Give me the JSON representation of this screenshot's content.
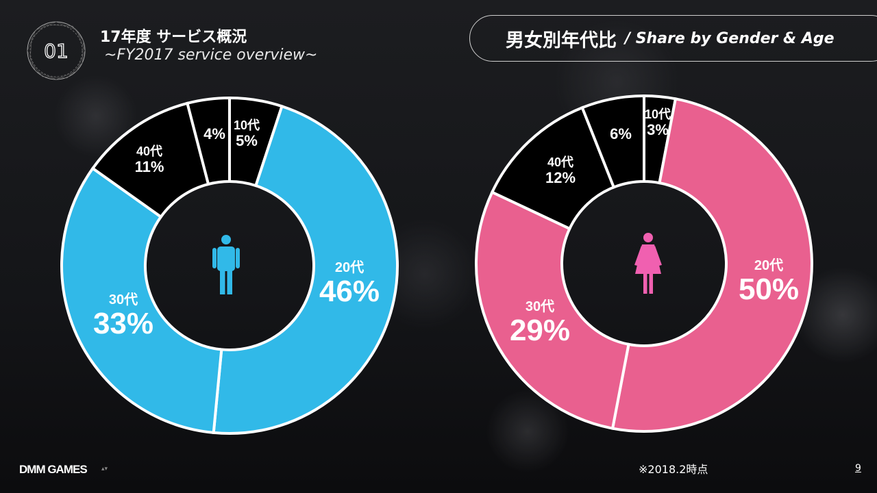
{
  "header": {
    "badge": "01",
    "title": "17年度 サービス概況",
    "subtitle": "~FY2017 service overview~",
    "section_title_jp": "男女別年代比",
    "section_title_en": "/ Share by Gender & Age"
  },
  "footer": {
    "brand": "DMM GAMES",
    "note": "※2018.2時点",
    "page": "9"
  },
  "colors": {
    "male": "#31b9e8",
    "female": "#e9608f",
    "other": "#000000"
  },
  "chart_data": [
    {
      "type": "pie",
      "title": "Male",
      "icon": "male-icon",
      "categories": [
        "10代",
        "20代",
        "30代",
        "40代",
        ""
      ],
      "values": [
        5,
        46,
        33,
        11,
        4
      ],
      "colors": [
        "#000000",
        "#31b9e8",
        "#31b9e8",
        "#000000",
        "#000000"
      ]
    },
    {
      "type": "pie",
      "title": "Female",
      "icon": "female-icon",
      "categories": [
        "10代",
        "20代",
        "30代",
        "40代",
        ""
      ],
      "values": [
        3,
        50,
        29,
        12,
        6
      ],
      "colors": [
        "#000000",
        "#e9608f",
        "#e9608f",
        "#000000",
        "#000000"
      ]
    }
  ]
}
